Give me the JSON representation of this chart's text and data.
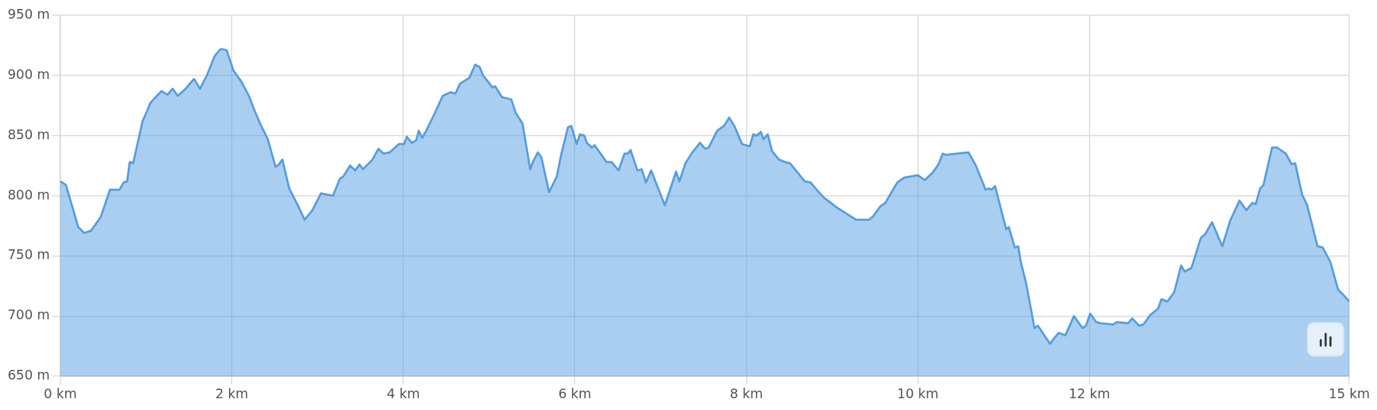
{
  "chart_data": {
    "type": "area",
    "x": [
      0,
      0.066,
      0.21,
      0.28,
      0.36,
      0.47,
      0.58,
      0.69,
      0.74,
      0.78,
      0.81,
      0.85,
      0.96,
      1.01,
      1.05,
      1.1,
      1.18,
      1.25,
      1.31,
      1.37,
      1.45,
      1.56,
      1.63,
      1.71,
      1.8,
      1.87,
      1.94,
      2.02,
      2.11,
      2.2,
      2.27,
      2.33,
      2.42,
      2.51,
      2.55,
      2.59,
      2.67,
      2.77,
      2.85,
      2.94,
      3.04,
      3.18,
      3.26,
      3.3,
      3.38,
      3.44,
      3.49,
      3.53,
      3.64,
      3.71,
      3.77,
      3.84,
      3.95,
      4.01,
      4.04,
      4.1,
      4.15,
      4.18,
      4.22,
      4.26,
      4.35,
      4.46,
      4.55,
      4.61,
      4.66,
      4.77,
      4.84,
      4.89,
      4.93,
      5.04,
      5.07,
      5.15,
      5.26,
      5.31,
      5.39,
      5.48,
      5.51,
      5.57,
      5.61,
      5.7,
      5.79,
      5.84,
      5.92,
      5.96,
      6.02,
      6.06,
      6.11,
      6.14,
      6.2,
      6.23,
      6.37,
      6.43,
      6.51,
      6.58,
      6.62,
      6.65,
      6.73,
      6.78,
      6.83,
      6.89,
      7.05,
      7.18,
      7.22,
      7.29,
      7.36,
      7.46,
      7.52,
      7.56,
      7.66,
      7.74,
      7.8,
      7.86,
      7.95,
      8.04,
      8.08,
      8.12,
      8.17,
      8.2,
      8.25,
      8.3,
      8.38,
      8.45,
      8.51,
      8.68,
      8.75,
      8.82,
      8.91,
      9.06,
      9.28,
      9.43,
      9.48,
      9.56,
      9.62,
      9.76,
      9.84,
      9.92,
      10.0,
      10.08,
      10.17,
      10.24,
      10.29,
      10.33,
      10.59,
      10.67,
      10.79,
      10.83,
      10.86,
      10.9,
      11.03,
      11.06,
      11.13,
      11.17,
      11.2,
      11.26,
      11.36,
      11.4,
      11.54,
      11.64,
      11.72,
      11.82,
      11.92,
      11.96,
      12.01,
      12.08,
      12.13,
      12.28,
      12.32,
      12.45,
      12.5,
      12.58,
      12.63,
      12.71,
      12.8,
      12.84,
      12.91,
      12.99,
      13.07,
      13.11,
      13.19,
      13.3,
      13.35,
      13.43,
      13.55,
      13.64,
      13.75,
      13.83,
      13.9,
      13.94,
      13.99,
      14.03,
      14.13,
      14.19,
      14.29,
      14.36,
      14.4,
      14.48,
      14.54,
      14.66,
      14.72,
      14.81,
      14.9,
      14.97,
      15.03
    ],
    "series": [
      {
        "color": "#559de0",
        "values": [
          812,
          809,
          774,
          769,
          771,
          782,
          805,
          805,
          811,
          812,
          828,
          827,
          862,
          870,
          877,
          881,
          887,
          884,
          889,
          883,
          888,
          897,
          889,
          900,
          916,
          922,
          921,
          904,
          895,
          883,
          870,
          860,
          847,
          824,
          826,
          830,
          806,
          792,
          780,
          788,
          802,
          800,
          814,
          816,
          825,
          821,
          826,
          822,
          830,
          839,
          835,
          836,
          843,
          843,
          849,
          844,
          846,
          854,
          848,
          853,
          866,
          883,
          886,
          885,
          893,
          898,
          909,
          907,
          900,
          890,
          891,
          882,
          880,
          869,
          860,
          822,
          828,
          836,
          832,
          803,
          816,
          834,
          857,
          858,
          843,
          851,
          850,
          844,
          840,
          842,
          828,
          828,
          821,
          835,
          835,
          838,
          821,
          822,
          811,
          821,
          792,
          820,
          812,
          827,
          835,
          844,
          839,
          840,
          854,
          858,
          865,
          858,
          843,
          841,
          851,
          850,
          853,
          847,
          851,
          837,
          830,
          828,
          827,
          812,
          811,
          805,
          798,
          790,
          780,
          780,
          783,
          791,
          794,
          811,
          815,
          816,
          817,
          813,
          819,
          826,
          835,
          834,
          836,
          826,
          805,
          806,
          805,
          808,
          772,
          774,
          757,
          758,
          745,
          728,
          690,
          692,
          677,
          686,
          684,
          700,
          690,
          692,
          702,
          695,
          694,
          693,
          695,
          694,
          698,
          692,
          693,
          701,
          706,
          714,
          712,
          720,
          742,
          737,
          740,
          765,
          768,
          778,
          758,
          779,
          796,
          788,
          794,
          793,
          806,
          809,
          840,
          840,
          835,
          826,
          827,
          801,
          792,
          758,
          757,
          745,
          722,
          717,
          712
        ]
      }
    ],
    "xlim": [
      0,
      15.03
    ],
    "xticks": [
      {
        "value": 0,
        "label": "0 km"
      },
      {
        "value": 2,
        "label": "2 km"
      },
      {
        "value": 4,
        "label": "4 km"
      },
      {
        "value": 6,
        "label": "6 km"
      },
      {
        "value": 8,
        "label": "8 km"
      },
      {
        "value": 10,
        "label": "10 km"
      },
      {
        "value": 12,
        "label": "12 km"
      },
      {
        "value": 15.03,
        "label": "15 km"
      }
    ],
    "ylim": [
      650,
      950
    ],
    "yticks": [
      {
        "value": 650,
        "label": "650 m"
      },
      {
        "value": 700,
        "label": "700 m"
      },
      {
        "value": 750,
        "label": "750 m"
      },
      {
        "value": 800,
        "label": "800 m"
      },
      {
        "value": 850,
        "label": "850 m"
      },
      {
        "value": 900,
        "label": "900 m"
      },
      {
        "value": 950,
        "label": "950 m"
      }
    ],
    "grid": true,
    "legend": false,
    "marker": "none",
    "line_style": "solid"
  }
}
